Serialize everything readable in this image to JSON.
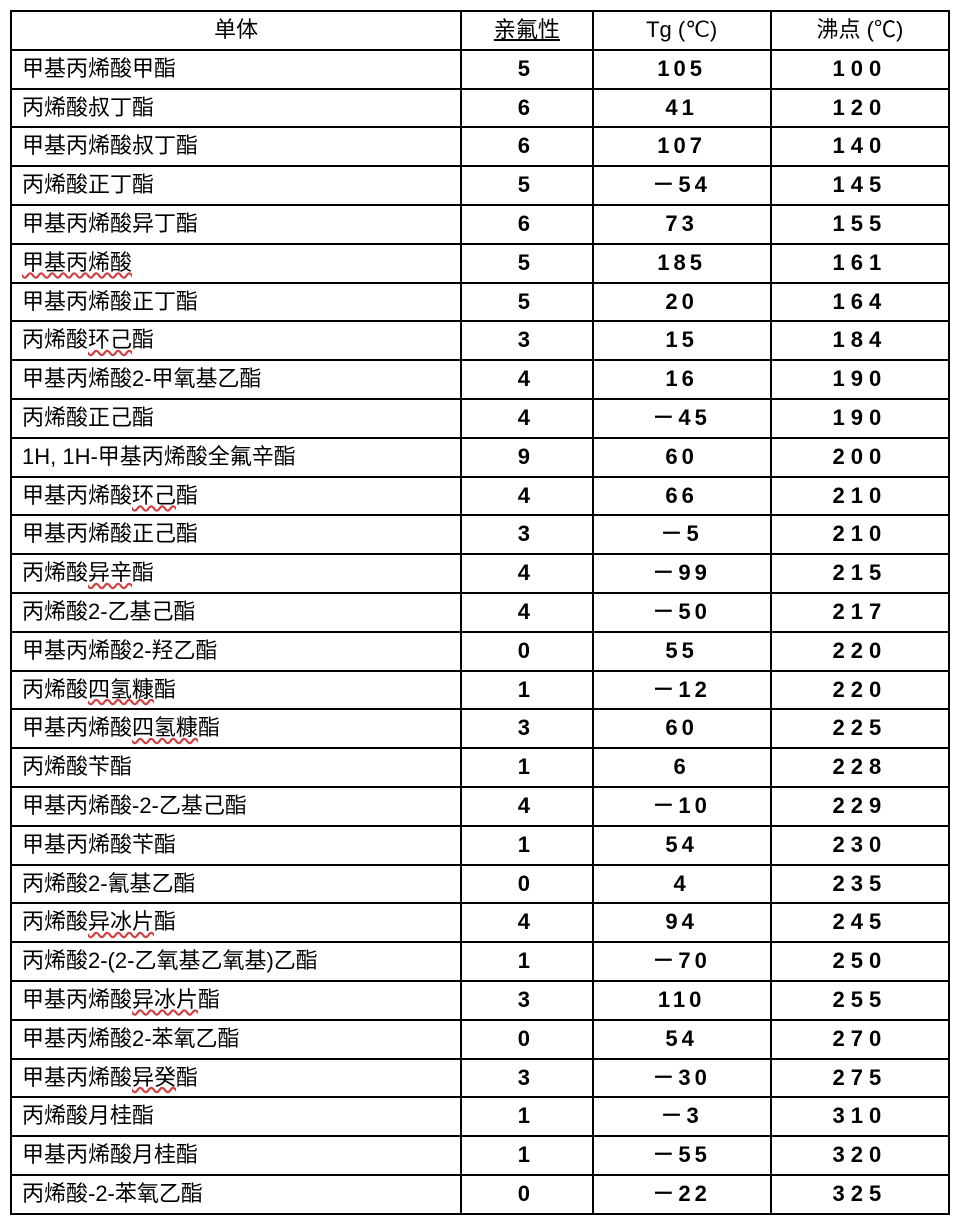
{
  "table": {
    "headers": {
      "monomer": "单体",
      "affinity": "亲氟性",
      "tg": "Tg (℃)",
      "bp": "沸点 (℃)"
    },
    "columns": {
      "widths": [
        "48%",
        "14%",
        "19%",
        "19%"
      ],
      "alignment": [
        "left",
        "center",
        "center",
        "center"
      ]
    },
    "colors": {
      "border": "#000000",
      "background": "#ffffff",
      "text": "#000000",
      "wavy_underline": "#d04040"
    },
    "typography": {
      "font_family": "SimSun",
      "font_size": 22,
      "number_font": "Arial",
      "number_weight": "bold",
      "number_letter_spacing": 6
    },
    "rows": [
      {
        "m_pre": "甲基丙烯酸甲酯",
        "m_wavy": "",
        "m_post": "",
        "a": "5",
        "tg": "105",
        "bp": "100"
      },
      {
        "m_pre": "丙烯酸叔丁酯",
        "m_wavy": "",
        "m_post": "",
        "a": "6",
        "tg": "41",
        "bp": "120"
      },
      {
        "m_pre": "甲基丙烯酸叔丁酯",
        "m_wavy": "",
        "m_post": "",
        "a": "6",
        "tg": "107",
        "bp": "140"
      },
      {
        "m_pre": "丙烯酸正丁酯",
        "m_wavy": "",
        "m_post": "",
        "a": "5",
        "tg": "－54",
        "bp": "145"
      },
      {
        "m_pre": "甲基丙烯酸异丁酯",
        "m_wavy": "",
        "m_post": "",
        "a": "6",
        "tg": "73",
        "bp": "155"
      },
      {
        "m_pre": "",
        "m_wavy": "甲基丙烯酸",
        "m_post": "",
        "a": "5",
        "tg": "185",
        "bp": "161"
      },
      {
        "m_pre": "甲基丙烯酸正丁酯",
        "m_wavy": "",
        "m_post": "",
        "a": "5",
        "tg": "20",
        "bp": "164"
      },
      {
        "m_pre": "丙烯酸",
        "m_wavy": "环己",
        "m_post": "酯",
        "a": "3",
        "tg": "15",
        "bp": "184"
      },
      {
        "m_pre": "甲基丙烯酸2-甲氧基乙酯",
        "m_wavy": "",
        "m_post": "",
        "a": "4",
        "tg": "16",
        "bp": "190"
      },
      {
        "m_pre": "丙烯酸正己酯",
        "m_wavy": "",
        "m_post": "",
        "a": "4",
        "tg": "－45",
        "bp": "190"
      },
      {
        "m_pre": "1H, 1H-甲基丙烯酸全氟辛酯",
        "m_wavy": "",
        "m_post": "",
        "a": "9",
        "tg": "60",
        "bp": "200"
      },
      {
        "m_pre": "甲基丙烯酸",
        "m_wavy": "环己",
        "m_post": "酯",
        "a": "4",
        "tg": "66",
        "bp": "210"
      },
      {
        "m_pre": "甲基丙烯酸正己酯",
        "m_wavy": "",
        "m_post": "",
        "a": "3",
        "tg": "－5",
        "bp": "210"
      },
      {
        "m_pre": "丙烯酸",
        "m_wavy": "异辛",
        "m_post": "酯",
        "a": "4",
        "tg": "－99",
        "bp": "215"
      },
      {
        "m_pre": "丙烯酸2-乙基己酯",
        "m_wavy": "",
        "m_post": "",
        "a": "4",
        "tg": "－50",
        "bp": "217"
      },
      {
        "m_pre": "甲基丙烯酸2-羟乙酯",
        "m_wavy": "",
        "m_post": "",
        "a": "0",
        "tg": "55",
        "bp": "220"
      },
      {
        "m_pre": "丙烯酸",
        "m_wavy": "四氢糠",
        "m_post": "酯",
        "a": "1",
        "tg": "－12",
        "bp": "220"
      },
      {
        "m_pre": "甲基丙烯酸",
        "m_wavy": "四氢糠",
        "m_post": "酯",
        "a": "3",
        "tg": "60",
        "bp": "225"
      },
      {
        "m_pre": "丙烯酸苄酯",
        "m_wavy": "",
        "m_post": "",
        "a": "1",
        "tg": "6",
        "bp": "228"
      },
      {
        "m_pre": "甲基丙烯酸-2-乙基己酯",
        "m_wavy": "",
        "m_post": "",
        "a": "4",
        "tg": "－10",
        "bp": "229"
      },
      {
        "m_pre": "甲基丙烯酸苄酯",
        "m_wavy": "",
        "m_post": "",
        "a": "1",
        "tg": "54",
        "bp": "230"
      },
      {
        "m_pre": "丙烯酸2-氰基乙酯",
        "m_wavy": "",
        "m_post": "",
        "a": "0",
        "tg": "4",
        "bp": "235"
      },
      {
        "m_pre": "丙烯酸",
        "m_wavy": "异冰片",
        "m_post": "酯",
        "a": "4",
        "tg": "94",
        "bp": "245"
      },
      {
        "m_pre": "丙烯酸2-(2-乙氧基乙氧基)乙酯",
        "m_wavy": "",
        "m_post": "",
        "a": "1",
        "tg": "－70",
        "bp": "250"
      },
      {
        "m_pre": "甲基丙烯酸",
        "m_wavy": "异冰片",
        "m_post": "酯",
        "a": "3",
        "tg": "110",
        "bp": "255"
      },
      {
        "m_pre": "甲基丙烯酸2-苯氧乙酯",
        "m_wavy": "",
        "m_post": "",
        "a": "0",
        "tg": "54",
        "bp": "270"
      },
      {
        "m_pre": "甲基丙烯酸",
        "m_wavy": "异癸",
        "m_post": "酯",
        "a": "3",
        "tg": "－30",
        "bp": "275"
      },
      {
        "m_pre": "丙烯酸月桂酯",
        "m_wavy": "",
        "m_post": "",
        "a": "1",
        "tg": "－3",
        "bp": "310"
      },
      {
        "m_pre": "甲基丙烯酸月桂酯",
        "m_wavy": "",
        "m_post": "",
        "a": "1",
        "tg": "－55",
        "bp": "320"
      },
      {
        "m_pre": "丙烯酸-2-苯氧乙酯",
        "m_wavy": "",
        "m_post": "",
        "a": "0",
        "tg": "－22",
        "bp": "325"
      }
    ]
  }
}
